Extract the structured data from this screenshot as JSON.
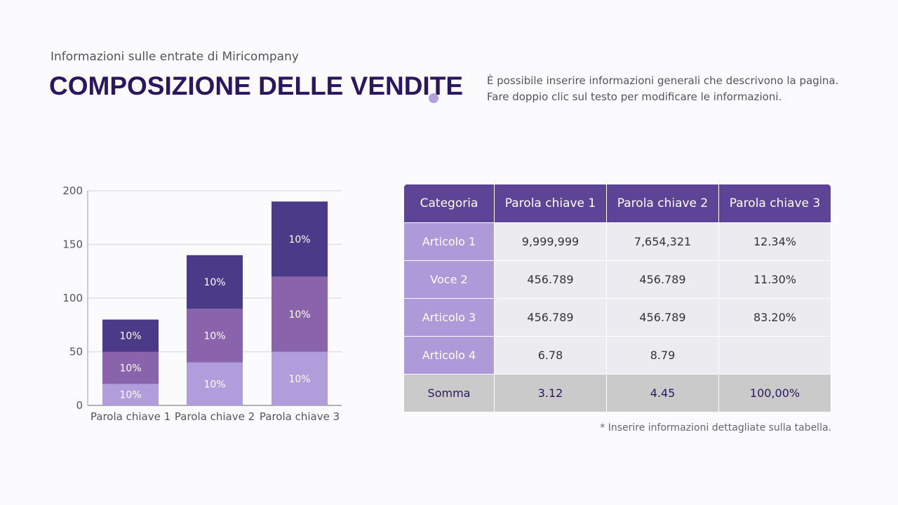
{
  "header": {
    "subtitle": "Informazioni sulle entrate di Miricompany",
    "title": "COMPOSIZIONE DELLE VENDITE",
    "description": "È possibile inserire informazioni generali che descrivono la pagina. Fare doppio clic sul testo per modificare le informazioni."
  },
  "chart_data": {
    "type": "bar",
    "stacked": true,
    "categories": [
      "Parola chiave 1",
      "Parola chiave 2",
      "Parola chiave 3"
    ],
    "series": [
      {
        "values": [
          20,
          40,
          50
        ],
        "labels": [
          "10%",
          "10%",
          "10%"
        ],
        "color": "#b09ddc"
      },
      {
        "values": [
          30,
          50,
          70
        ],
        "labels": [
          "10%",
          "10%",
          "10%"
        ],
        "color": "#8a63ad"
      },
      {
        "values": [
          30,
          50,
          70
        ],
        "labels": [
          "10%",
          "10%",
          "10%"
        ],
        "color": "#4a3a88"
      }
    ],
    "ylim": [
      0,
      200
    ],
    "yticks": [
      0,
      50,
      100,
      150,
      200
    ],
    "grid": true,
    "legend": "none"
  },
  "table": {
    "headers": [
      "Categoria",
      "Parola chiave 1",
      "Parola chiave 2",
      "Parola chiave 3"
    ],
    "rows": [
      [
        "Articolo 1",
        "9,999,999",
        "7,654,321",
        "12.34%"
      ],
      [
        "Voce 2",
        "456.789",
        "456.789",
        "11.30%"
      ],
      [
        "Articolo 3",
        "456.789",
        "456.789",
        "83.20%"
      ],
      [
        "Articolo 4",
        "6.78",
        "8.79",
        ""
      ]
    ],
    "sum": [
      "Somma",
      "3.12",
      "4.45",
      "100,00%"
    ],
    "note": "* Inserire informazioni dettagliate sulla tabella."
  }
}
